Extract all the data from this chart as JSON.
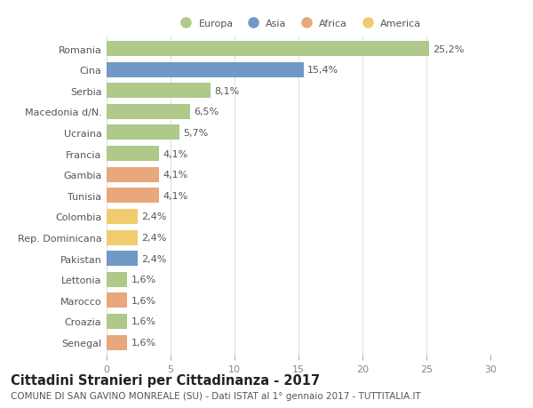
{
  "countries": [
    "Romania",
    "Cina",
    "Serbia",
    "Macedonia d/N.",
    "Ucraina",
    "Francia",
    "Gambia",
    "Tunisia",
    "Colombia",
    "Rep. Dominicana",
    "Pakistan",
    "Lettonia",
    "Marocco",
    "Croazia",
    "Senegal"
  ],
  "values": [
    25.2,
    15.4,
    8.1,
    6.5,
    5.7,
    4.1,
    4.1,
    4.1,
    2.4,
    2.4,
    2.4,
    1.6,
    1.6,
    1.6,
    1.6
  ],
  "labels": [
    "25,2%",
    "15,4%",
    "8,1%",
    "6,5%",
    "5,7%",
    "4,1%",
    "4,1%",
    "4,1%",
    "2,4%",
    "2,4%",
    "2,4%",
    "1,6%",
    "1,6%",
    "1,6%",
    "1,6%"
  ],
  "colors": [
    "#aec98a",
    "#7099c5",
    "#aec98a",
    "#aec98a",
    "#aec98a",
    "#aec98a",
    "#e8a87c",
    "#e8a87c",
    "#f0cc6e",
    "#f0cc6e",
    "#7099c5",
    "#aec98a",
    "#e8a87c",
    "#aec98a",
    "#e8a87c"
  ],
  "legend_labels": [
    "Europa",
    "Asia",
    "Africa",
    "America"
  ],
  "legend_colors": [
    "#aec98a",
    "#7099c5",
    "#e8a87c",
    "#f0cc6e"
  ],
  "xlim": [
    0,
    30
  ],
  "xticks": [
    0,
    5,
    10,
    15,
    20,
    25,
    30
  ],
  "title": "Cittadini Stranieri per Cittadinanza - 2017",
  "subtitle": "COMUNE DI SAN GAVINO MONREALE (SU) - Dati ISTAT al 1° gennaio 2017 - TUTTITALIA.IT",
  "bg_color": "#ffffff",
  "grid_color": "#e0e0e0",
  "bar_height": 0.72,
  "label_fontsize": 8.0,
  "ytick_fontsize": 8.0,
  "xtick_fontsize": 8.0,
  "title_fontsize": 10.5,
  "subtitle_fontsize": 7.5,
  "value_label_color": "#555555",
  "ytick_color": "#555555",
  "xtick_color": "#888888"
}
